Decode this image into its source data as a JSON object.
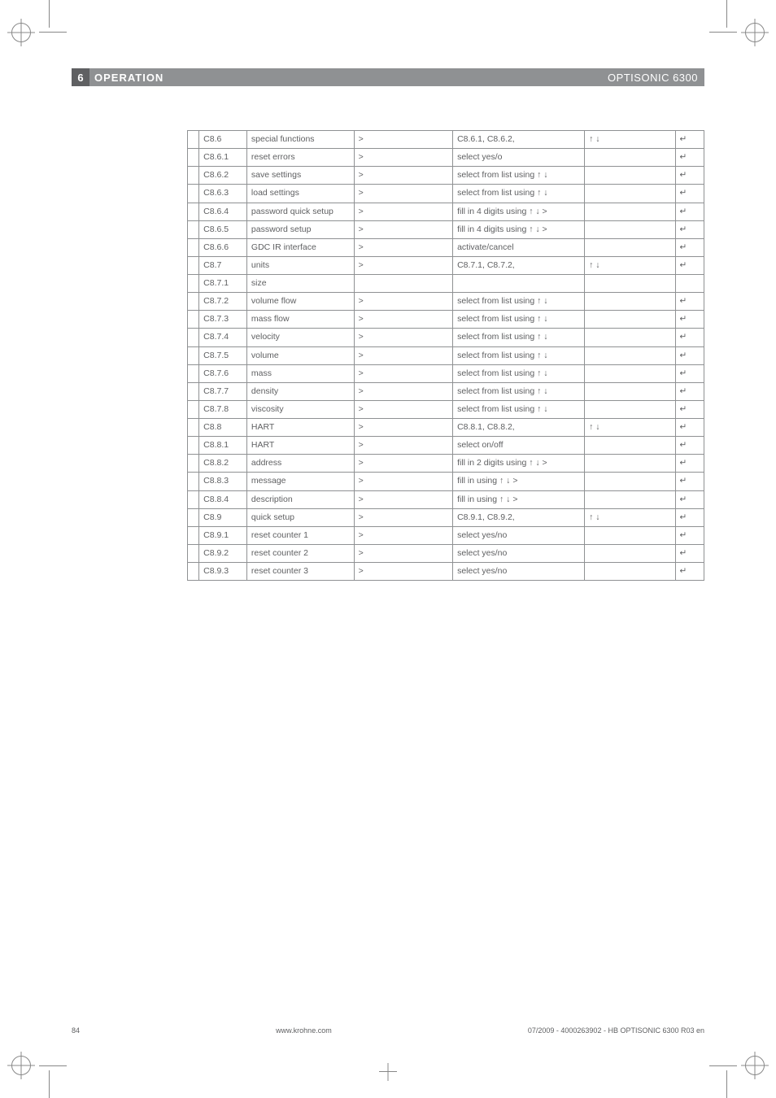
{
  "header": {
    "section_num": "6",
    "title": "OPERATION",
    "product": "OPTISONIC 6300"
  },
  "glyphs": {
    "gt": ">",
    "updown": "↑ ↓",
    "enter": "↵",
    "updown_gt": "↑ ↓ >"
  },
  "rows": [
    {
      "code": "C8.6",
      "name": "special functions",
      "c3": "gt",
      "c4": "C8.6.1, C8.6.2,",
      "c5": "updown",
      "c6": "enter"
    },
    {
      "code": "C8.6.1",
      "name": "reset errors",
      "c3": "gt",
      "c4": "select yes/o",
      "c5": "",
      "c6": "enter"
    },
    {
      "code": "C8.6.2",
      "name": "save settings",
      "c3": "gt",
      "c4": "select from list using ↑ ↓",
      "c5": "",
      "c6": "enter"
    },
    {
      "code": "C8.6.3",
      "name": "load settings",
      "c3": "gt",
      "c4": "select from list using ↑ ↓",
      "c5": "",
      "c6": "enter"
    },
    {
      "code": "C8.6.4",
      "name": "password quick setup",
      "c3": "gt",
      "c4": "fill in 4 digits using ↑ ↓ >",
      "c5": "",
      "c6": "enter"
    },
    {
      "code": "C8.6.5",
      "name": "password setup",
      "c3": "gt",
      "c4": "fill in 4 digits using ↑ ↓ >",
      "c5": "",
      "c6": "enter"
    },
    {
      "code": "C8.6.6",
      "name": "GDC IR interface",
      "c3": "gt",
      "c4": "activate/cancel",
      "c5": "",
      "c6": "enter"
    },
    {
      "code": "C8.7",
      "name": "units",
      "c3": "gt",
      "c4": "C8.7.1, C8.7.2,",
      "c5": "updown",
      "c6": "enter"
    },
    {
      "code": "C8.7.1",
      "name": "size",
      "c3": "",
      "c4": "",
      "c5": "",
      "c6": ""
    },
    {
      "code": "C8.7.2",
      "name": "volume flow",
      "c3": "gt",
      "c4": "select from list using ↑ ↓",
      "c5": "",
      "c6": "enter"
    },
    {
      "code": "C8.7.3",
      "name": "mass flow",
      "c3": "gt",
      "c4": "select from list using ↑ ↓",
      "c5": "",
      "c6": "enter"
    },
    {
      "code": "C8.7.4",
      "name": "velocity",
      "c3": "gt",
      "c4": "select from list using ↑ ↓",
      "c5": "",
      "c6": "enter"
    },
    {
      "code": "C8.7.5",
      "name": "volume",
      "c3": "gt",
      "c4": "select from list using ↑ ↓",
      "c5": "",
      "c6": "enter"
    },
    {
      "code": "C8.7.6",
      "name": "mass",
      "c3": "gt",
      "c4": "select from list using ↑ ↓",
      "c5": "",
      "c6": "enter"
    },
    {
      "code": "C8.7.7",
      "name": "density",
      "c3": "gt",
      "c4": "select from list using ↑ ↓",
      "c5": "",
      "c6": "enter"
    },
    {
      "code": "C8.7.8",
      "name": "viscosity",
      "c3": "gt",
      "c4": "select from list using ↑ ↓",
      "c5": "",
      "c6": "enter"
    },
    {
      "code": "C8.8",
      "name": "HART",
      "c3": "gt",
      "c4": "C8.8.1, C8.8.2,",
      "c5": "updown",
      "c6": "enter"
    },
    {
      "code": "C8.8.1",
      "name": "HART",
      "c3": "gt",
      "c4": "select on/off",
      "c5": "",
      "c6": "enter"
    },
    {
      "code": "C8.8.2",
      "name": "address",
      "c3": "gt",
      "c4": "fill in 2 digits using ↑ ↓ >",
      "c5": "",
      "c6": "enter"
    },
    {
      "code": "C8.8.3",
      "name": "message",
      "c3": "gt",
      "c4": "fill in using ↑ ↓ >",
      "c5": "",
      "c6": "enter"
    },
    {
      "code": "C8.8.4",
      "name": "description",
      "c3": "gt",
      "c4": "fill in using ↑ ↓ >",
      "c5": "",
      "c6": "enter"
    },
    {
      "code": "C8.9",
      "name": "quick setup",
      "c3": "gt",
      "c4": "C8.9.1, C8.9.2,",
      "c5": "updown",
      "c6": "enter"
    },
    {
      "code": "C8.9.1",
      "name": "reset counter 1",
      "c3": "gt",
      "c4": "select yes/no",
      "c5": "",
      "c6": "enter"
    },
    {
      "code": "C8.9.2",
      "name": "reset counter 2",
      "c3": "gt",
      "c4": "select yes/no",
      "c5": "",
      "c6": "enter"
    },
    {
      "code": "C8.9.3",
      "name": "reset counter 3",
      "c3": "gt",
      "c4": "select yes/no",
      "c5": "",
      "c6": "enter"
    }
  ],
  "footer": {
    "page": "84",
    "url": "www.krohne.com",
    "doc": "07/2009 - 4000263902 - HB OPTISONIC 6300 R03 en"
  }
}
